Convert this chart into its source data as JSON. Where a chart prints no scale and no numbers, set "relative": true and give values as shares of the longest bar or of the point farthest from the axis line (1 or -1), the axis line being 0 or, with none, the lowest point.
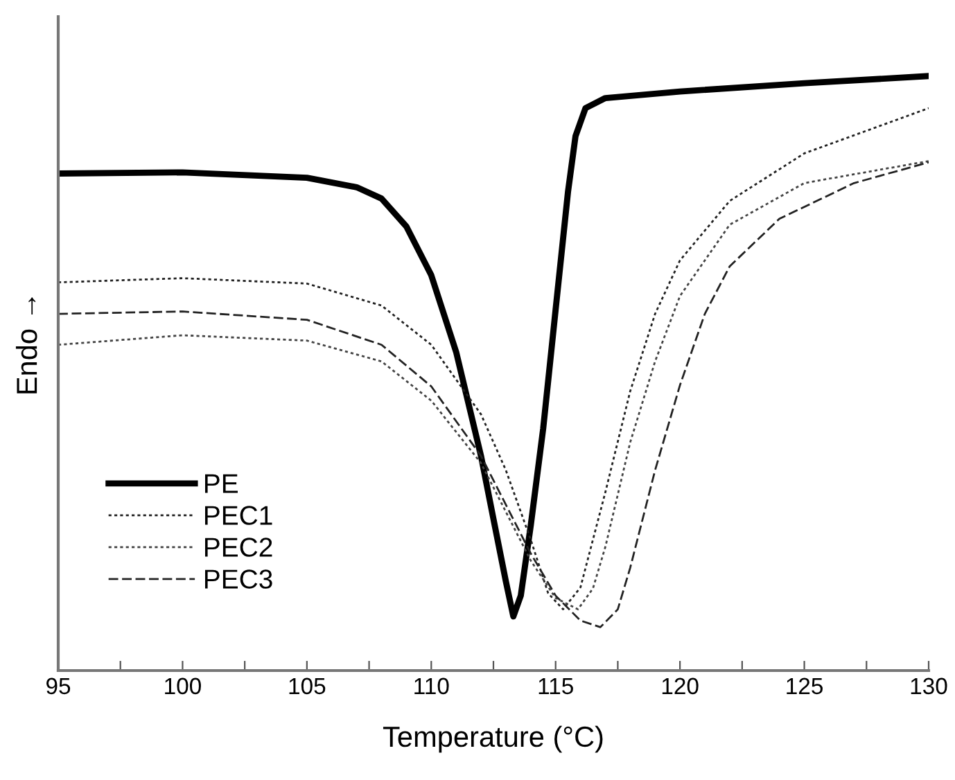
{
  "chart_data": {
    "type": "line",
    "relative": true,
    "xlabel": "Temperature (°C)",
    "ylabel": "Endo →",
    "xlim": [
      95,
      130
    ],
    "xticks": [
      95,
      {
        "value": 97.5,
        "label": null
      },
      100,
      {
        "value": 102.5,
        "label": null
      },
      105,
      {
        "value": 107.5,
        "label": null
      },
      110,
      {
        "value": 112.5,
        "label": null
      },
      115,
      {
        "value": 117.5,
        "label": null
      },
      120,
      {
        "value": 122.5,
        "label": null
      },
      125,
      {
        "value": 127.5,
        "label": null
      },
      130
    ],
    "legend": "bottom left",
    "grid": false,
    "tick_labels": "x",
    "series": [
      {
        "name": "PE",
        "color": "#000000",
        "line_style": "solid",
        "x": [
          95,
          100,
          105,
          107,
          108,
          109,
          110,
          111,
          112,
          112.5,
          113,
          113.3,
          113.6,
          114,
          114.5,
          115,
          115.5,
          115.8,
          116.2,
          117,
          120,
          125,
          130
        ],
        "values": [
          0.836,
          0.838,
          0.829,
          0.813,
          0.794,
          0.747,
          0.665,
          0.536,
          0.361,
          0.255,
          0.15,
          0.091,
          0.126,
          0.244,
          0.407,
          0.607,
          0.806,
          0.899,
          0.946,
          0.963,
          0.974,
          0.988,
          1.0
        ]
      },
      {
        "name": "PEC1",
        "color": "#222222",
        "line_style": "dotted",
        "x": [
          95,
          100,
          105,
          108,
          110,
          112,
          113,
          114,
          114.7,
          115.3,
          116,
          117,
          118,
          119,
          120,
          122,
          125,
          130
        ],
        "values": [
          0.653,
          0.66,
          0.651,
          0.614,
          0.548,
          0.431,
          0.337,
          0.22,
          0.13,
          0.103,
          0.14,
          0.3,
          0.47,
          0.6,
          0.69,
          0.79,
          0.87,
          0.946
        ]
      },
      {
        "name": "PEC2",
        "color": "#444444",
        "line_style": "dotted",
        "x": [
          95,
          100,
          105,
          108,
          110,
          112,
          113,
          114,
          115,
          115.9,
          116.5,
          117,
          118,
          119,
          120,
          122,
          125,
          130
        ],
        "values": [
          0.548,
          0.564,
          0.555,
          0.52,
          0.454,
          0.349,
          0.267,
          0.185,
          0.122,
          0.103,
          0.138,
          0.208,
          0.384,
          0.52,
          0.63,
          0.75,
          0.82,
          0.857
        ]
      },
      {
        "name": "PEC3",
        "color": "#222222",
        "line_style": "dashed",
        "x": [
          95,
          100,
          105,
          108,
          110,
          112,
          113,
          114,
          115,
          116,
          116.8,
          117.5,
          118,
          119,
          120,
          121,
          122,
          124,
          127,
          130
        ],
        "values": [
          0.6,
          0.604,
          0.59,
          0.548,
          0.478,
          0.361,
          0.279,
          0.197,
          0.126,
          0.084,
          0.073,
          0.103,
          0.173,
          0.337,
          0.48,
          0.6,
          0.68,
          0.76,
          0.82,
          0.855
        ]
      }
    ]
  }
}
